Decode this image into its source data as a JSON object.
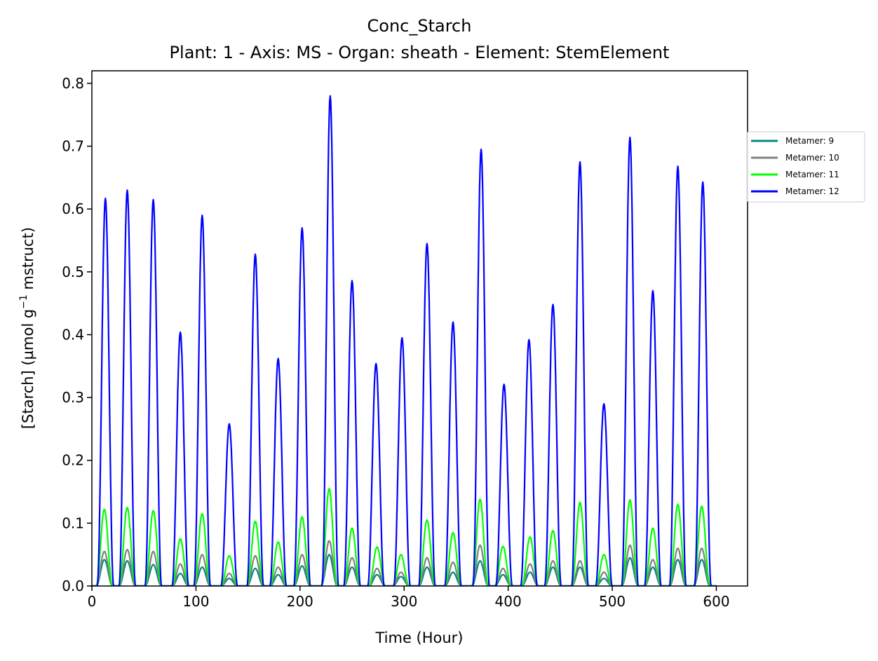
{
  "chart_data": {
    "type": "line",
    "title": "Conc_Starch",
    "subtitle": "Plant: 1 - Axis: MS - Organ: sheath - Element: StemElement",
    "xlabel": "Time (Hour)",
    "ylabel_parts": {
      "pre": "[Starch] (µmol g",
      "sup": "−1",
      "post": " mstruct)"
    },
    "xlim": [
      0,
      630
    ],
    "ylim": [
      0,
      0.82
    ],
    "xticks": [
      0,
      100,
      200,
      300,
      400,
      500,
      600
    ],
    "yticks": [
      0.0,
      0.1,
      0.2,
      0.3,
      0.4,
      0.5,
      0.6,
      0.7,
      0.8
    ],
    "ytick_labels": [
      "0.0",
      "0.1",
      "0.2",
      "0.3",
      "0.4",
      "0.5",
      "0.6",
      "0.7",
      "0.8"
    ],
    "grid": false,
    "legend_position": "outside right, upper",
    "series": [
      {
        "name": "Metamer: 9",
        "color": "#008B80",
        "peaks": [
          [
            12,
            0.042
          ],
          [
            34,
            0.04
          ],
          [
            59,
            0.034
          ],
          [
            85,
            0.02
          ],
          [
            106,
            0.03
          ],
          [
            132,
            0.012
          ],
          [
            157,
            0.028
          ],
          [
            179,
            0.018
          ],
          [
            202,
            0.032
          ],
          [
            228,
            0.05
          ],
          [
            250,
            0.03
          ],
          [
            274,
            0.018
          ],
          [
            297,
            0.015
          ],
          [
            322,
            0.03
          ],
          [
            347,
            0.022
          ],
          [
            373,
            0.04
          ],
          [
            395,
            0.018
          ],
          [
            421,
            0.022
          ],
          [
            443,
            0.03
          ],
          [
            469,
            0.03
          ],
          [
            492,
            0.012
          ],
          [
            517,
            0.045
          ],
          [
            539,
            0.03
          ],
          [
            563,
            0.042
          ],
          [
            586,
            0.042
          ]
        ]
      },
      {
        "name": "Metamer: 10",
        "color": "#808080",
        "peaks": [
          [
            12,
            0.055
          ],
          [
            34,
            0.058
          ],
          [
            59,
            0.055
          ],
          [
            85,
            0.035
          ],
          [
            106,
            0.05
          ],
          [
            132,
            0.02
          ],
          [
            157,
            0.048
          ],
          [
            179,
            0.03
          ],
          [
            202,
            0.05
          ],
          [
            228,
            0.072
          ],
          [
            250,
            0.045
          ],
          [
            274,
            0.028
          ],
          [
            297,
            0.022
          ],
          [
            322,
            0.045
          ],
          [
            347,
            0.038
          ],
          [
            373,
            0.065
          ],
          [
            395,
            0.028
          ],
          [
            421,
            0.035
          ],
          [
            443,
            0.04
          ],
          [
            469,
            0.04
          ],
          [
            492,
            0.022
          ],
          [
            517,
            0.065
          ],
          [
            539,
            0.042
          ],
          [
            563,
            0.06
          ],
          [
            586,
            0.06
          ]
        ]
      },
      {
        "name": "Metamer: 11",
        "color": "#00FF00",
        "peaks": [
          [
            12,
            0.122
          ],
          [
            34,
            0.125
          ],
          [
            59,
            0.12
          ],
          [
            85,
            0.075
          ],
          [
            106,
            0.115
          ],
          [
            132,
            0.048
          ],
          [
            157,
            0.103
          ],
          [
            179,
            0.07
          ],
          [
            202,
            0.11
          ],
          [
            228,
            0.155
          ],
          [
            250,
            0.092
          ],
          [
            274,
            0.062
          ],
          [
            297,
            0.05
          ],
          [
            322,
            0.105
          ],
          [
            347,
            0.085
          ],
          [
            373,
            0.138
          ],
          [
            395,
            0.063
          ],
          [
            421,
            0.078
          ],
          [
            443,
            0.088
          ],
          [
            469,
            0.133
          ],
          [
            492,
            0.05
          ],
          [
            517,
            0.137
          ],
          [
            539,
            0.092
          ],
          [
            563,
            0.13
          ],
          [
            586,
            0.127
          ]
        ]
      },
      {
        "name": "Metamer: 12",
        "color": "#0000FF",
        "peaks": [
          [
            13,
            0.617
          ],
          [
            34,
            0.63
          ],
          [
            59,
            0.615
          ],
          [
            85,
            0.404
          ],
          [
            106,
            0.59
          ],
          [
            132,
            0.258
          ],
          [
            157,
            0.528
          ],
          [
            179,
            0.362
          ],
          [
            202,
            0.57
          ],
          [
            229,
            0.78
          ],
          [
            250,
            0.486
          ],
          [
            273,
            0.354
          ],
          [
            298,
            0.395
          ],
          [
            322,
            0.545
          ],
          [
            347,
            0.42
          ],
          [
            374,
            0.695
          ],
          [
            396,
            0.321
          ],
          [
            420,
            0.392
          ],
          [
            443,
            0.448
          ],
          [
            469,
            0.675
          ],
          [
            492,
            0.29
          ],
          [
            517,
            0.714
          ],
          [
            539,
            0.47
          ],
          [
            563,
            0.668
          ],
          [
            587,
            0.643
          ]
        ]
      }
    ]
  }
}
